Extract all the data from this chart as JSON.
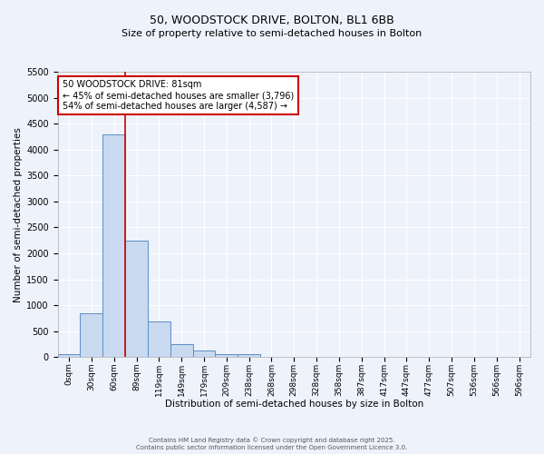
{
  "title": "50, WOODSTOCK DRIVE, BOLTON, BL1 6BB",
  "subtitle": "Size of property relative to semi-detached houses in Bolton",
  "xlabel": "Distribution of semi-detached houses by size in Bolton",
  "ylabel": "Number of semi-detached properties",
  "bar_color": "#c9d9f0",
  "bar_edge_color": "#5b8ec4",
  "background_color": "#eef2fb",
  "plot_bg_color": "#eef2fb",
  "grid_color": "#ffffff",
  "bin_labels": [
    "0sqm",
    "30sqm",
    "60sqm",
    "89sqm",
    "119sqm",
    "149sqm",
    "179sqm",
    "209sqm",
    "238sqm",
    "268sqm",
    "298sqm",
    "328sqm",
    "358sqm",
    "387sqm",
    "417sqm",
    "447sqm",
    "477sqm",
    "507sqm",
    "536sqm",
    "566sqm",
    "596sqm"
  ],
  "values": [
    50,
    850,
    4300,
    2250,
    680,
    250,
    120,
    60,
    50,
    0,
    0,
    0,
    0,
    0,
    0,
    0,
    0,
    0,
    0,
    0,
    0
  ],
  "ylim": [
    0,
    5500
  ],
  "yticks": [
    0,
    500,
    1000,
    1500,
    2000,
    2500,
    3000,
    3500,
    4000,
    4500,
    5000,
    5500
  ],
  "red_line_x": 2.5,
  "annotation_text": "50 WOODSTOCK DRIVE: 81sqm\n← 45% of semi-detached houses are smaller (3,796)\n54% of semi-detached houses are larger (4,587) →",
  "annotation_box_color": "#ffffff",
  "annotation_box_edge_color": "#cc0000",
  "red_line_color": "#cc0000",
  "footer_line1": "Contains HM Land Registry data © Crown copyright and database right 2025.",
  "footer_line2": "Contains public sector information licensed under the Open Government Licence 3.0.",
  "title_fontsize": 9,
  "subtitle_fontsize": 8,
  "annotation_fontsize": 7,
  "xlabel_fontsize": 7.5,
  "ylabel_fontsize": 7.5,
  "footer_fontsize": 5
}
